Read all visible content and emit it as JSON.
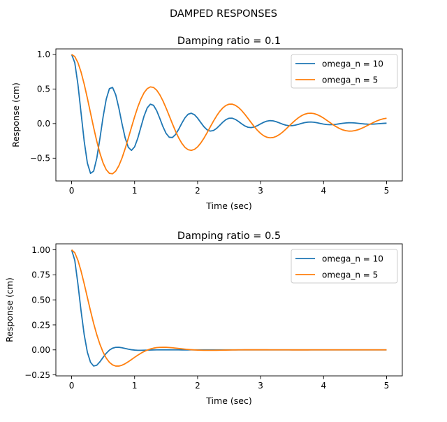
{
  "suptitle": "DAMPED RESPONSES",
  "colors": {
    "series_1": "#1f77b4",
    "series_2": "#ff7f0e"
  },
  "chart_data": [
    {
      "type": "line",
      "title": "Damping ratio = 0.1",
      "xlabel": "Time (sec)",
      "ylabel": "Response (cm)",
      "xlim": [
        -0.25,
        5.25
      ],
      "ylim": [
        -0.83,
        1.08
      ],
      "xticks": [
        0,
        1,
        2,
        3,
        4,
        5
      ],
      "xtick_labels": [
        "0",
        "1",
        "2",
        "3",
        "4",
        "5"
      ],
      "yticks": [
        -0.5,
        0.0,
        0.5,
        1.0
      ],
      "ytick_labels": [
        "−0.5",
        "0.0",
        "0.5",
        "1.0"
      ],
      "grid": false,
      "legend": "top-right",
      "series": [
        {
          "name": "omega_n = 10",
          "color": "#1f77b4",
          "x_range": [
            0,
            5
          ],
          "n_points": 101,
          "model": {
            "zeta": 0.1,
            "omega_n": 10
          }
        },
        {
          "name": "omega_n = 5",
          "color": "#ff7f0e",
          "x_range": [
            0,
            5
          ],
          "n_points": 101,
          "model": {
            "zeta": 0.1,
            "omega_n": 5
          }
        }
      ]
    },
    {
      "type": "line",
      "title": "Damping ratio = 0.5",
      "xlabel": "Time (sec)",
      "ylabel": "Response (cm)",
      "xlim": [
        -0.25,
        5.25
      ],
      "ylim": [
        -0.26,
        1.06
      ],
      "xticks": [
        0,
        1,
        2,
        3,
        4,
        5
      ],
      "xtick_labels": [
        "0",
        "1",
        "2",
        "3",
        "4",
        "5"
      ],
      "yticks": [
        -0.25,
        0.0,
        0.25,
        0.5,
        0.75,
        1.0
      ],
      "ytick_labels": [
        "−0.25",
        "0.00",
        "0.25",
        "0.50",
        "0.75",
        "1.00"
      ],
      "grid": false,
      "legend": "top-right",
      "series": [
        {
          "name": "omega_n = 10",
          "color": "#1f77b4",
          "x_range": [
            0,
            5
          ],
          "n_points": 101,
          "model": {
            "zeta": 0.5,
            "omega_n": 10
          }
        },
        {
          "name": "omega_n = 5",
          "color": "#ff7f0e",
          "x_range": [
            0,
            5
          ],
          "n_points": 101,
          "model": {
            "zeta": 0.5,
            "omega_n": 5
          }
        }
      ]
    }
  ]
}
